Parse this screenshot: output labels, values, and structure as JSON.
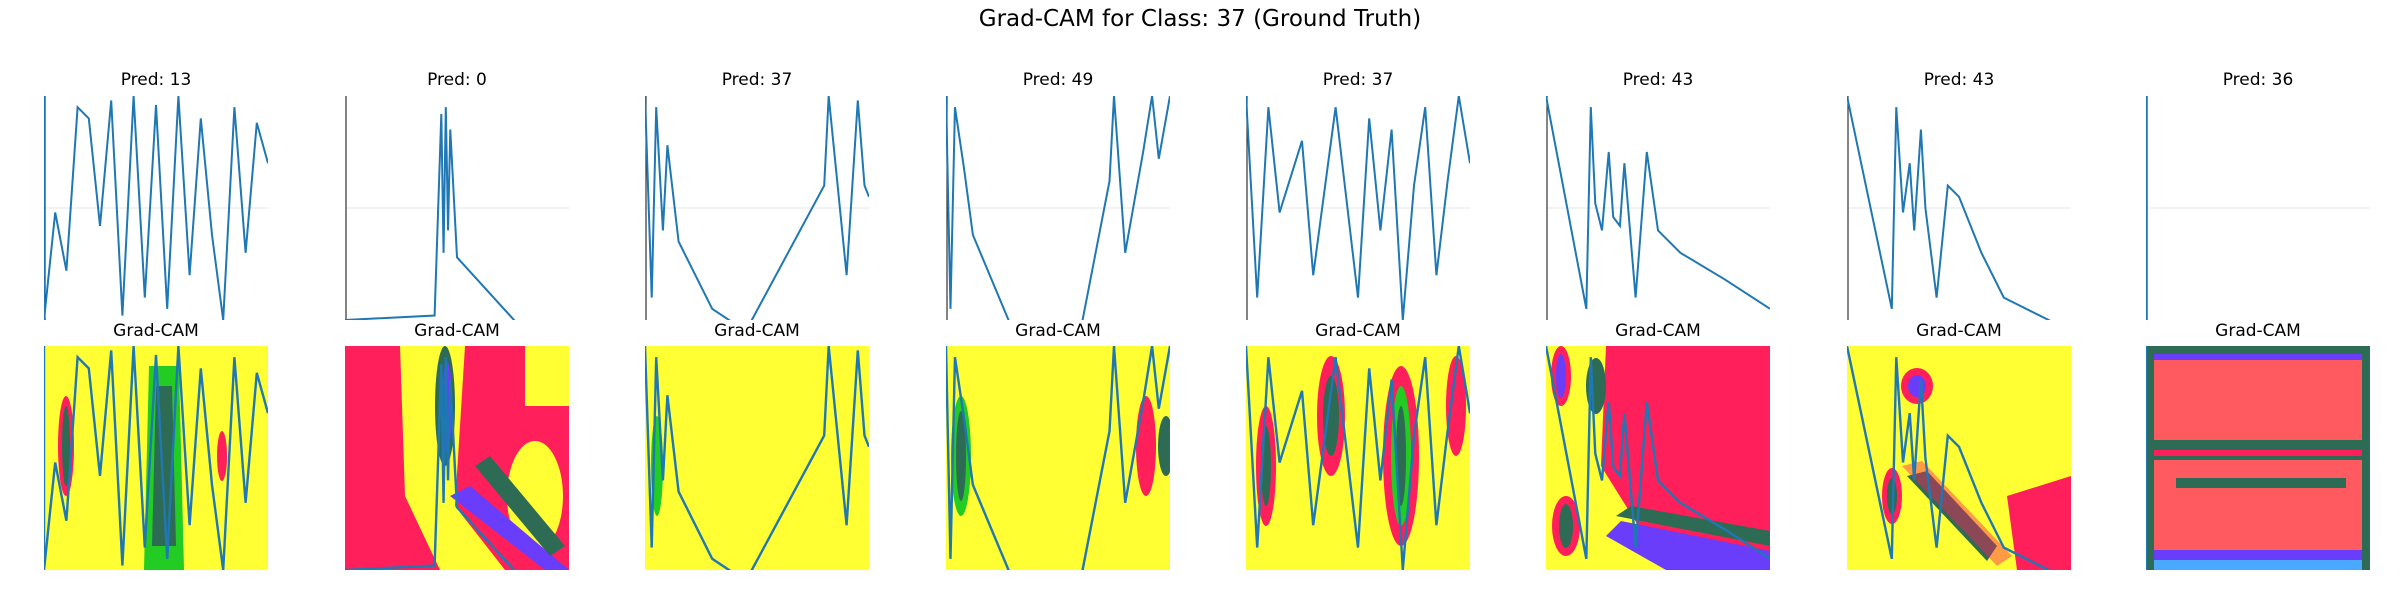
{
  "figure": {
    "title": "Grad-CAM for Class: 37 (Ground Truth)"
  },
  "chart_data": {
    "type": "line",
    "title": "Grad-CAM for Class: 37 (Ground Truth)",
    "grid": true,
    "colors": {
      "line": "#1f77b4",
      "heat_high": "#ffff33",
      "heat_mid": "#ff1f5b",
      "heat_low": "#2e6b55",
      "heat_cool": "#6a3dfa",
      "heat_green": "#22cc22",
      "heat_salmon": "#ff5a5f"
    },
    "panels": [
      {
        "top_label": "Pred: 13",
        "bottom_label": "Grad-CAM",
        "series": [
          [
            0,
            100
          ],
          [
            0,
            0
          ],
          [
            5,
            48
          ],
          [
            10,
            22
          ],
          [
            15,
            95
          ],
          [
            20,
            90
          ],
          [
            25,
            42
          ],
          [
            30,
            98
          ],
          [
            35,
            2
          ],
          [
            40,
            100
          ],
          [
            45,
            10
          ],
          [
            50,
            96
          ],
          [
            55,
            5
          ],
          [
            60,
            100
          ],
          [
            65,
            20
          ],
          [
            70,
            90
          ],
          [
            75,
            38
          ],
          [
            80,
            0
          ],
          [
            85,
            95
          ],
          [
            90,
            30
          ],
          [
            95,
            88
          ],
          [
            100,
            70
          ]
        ]
      },
      {
        "top_label": "Pred: 0",
        "bottom_label": "Grad-CAM",
        "series": [
          [
            0,
            0
          ],
          [
            40,
            2
          ],
          [
            43,
            92
          ],
          [
            44,
            30
          ],
          [
            45,
            95
          ],
          [
            46,
            40
          ],
          [
            47,
            85
          ],
          [
            50,
            28
          ],
          [
            80,
            -5
          ],
          [
            100,
            -10
          ]
        ]
      },
      {
        "top_label": "Pred: 37",
        "bottom_label": "Grad-CAM",
        "series": [
          [
            0,
            100
          ],
          [
            3,
            10
          ],
          [
            5,
            95
          ],
          [
            8,
            40
          ],
          [
            10,
            78
          ],
          [
            15,
            35
          ],
          [
            30,
            5
          ],
          [
            45,
            -5
          ],
          [
            80,
            60
          ],
          [
            82,
            100
          ],
          [
            90,
            20
          ],
          [
            95,
            98
          ],
          [
            98,
            60
          ],
          [
            100,
            55
          ]
        ]
      },
      {
        "top_label": "Pred: 49",
        "bottom_label": "Grad-CAM",
        "series": [
          [
            0,
            100
          ],
          [
            2,
            5
          ],
          [
            4,
            95
          ],
          [
            8,
            68
          ],
          [
            12,
            38
          ],
          [
            30,
            -5
          ],
          [
            60,
            -5
          ],
          [
            73,
            62
          ],
          [
            75,
            100
          ],
          [
            80,
            30
          ],
          [
            88,
            75
          ],
          [
            92,
            100
          ],
          [
            95,
            72
          ],
          [
            100,
            100
          ]
        ]
      },
      {
        "top_label": "Pred: 37",
        "bottom_label": "Grad-CAM",
        "series": [
          [
            0,
            100
          ],
          [
            5,
            10
          ],
          [
            10,
            95
          ],
          [
            15,
            48
          ],
          [
            25,
            80
          ],
          [
            30,
            20
          ],
          [
            40,
            95
          ],
          [
            50,
            10
          ],
          [
            55,
            90
          ],
          [
            60,
            40
          ],
          [
            65,
            85
          ],
          [
            70,
            0
          ],
          [
            75,
            60
          ],
          [
            80,
            95
          ],
          [
            85,
            20
          ],
          [
            90,
            62
          ],
          [
            95,
            100
          ],
          [
            100,
            70
          ]
        ]
      },
      {
        "top_label": "Pred: 43",
        "bottom_label": "Grad-CAM",
        "series": [
          [
            0,
            100
          ],
          [
            18,
            5
          ],
          [
            20,
            95
          ],
          [
            22,
            52
          ],
          [
            25,
            40
          ],
          [
            28,
            75
          ],
          [
            30,
            46
          ],
          [
            33,
            42
          ],
          [
            35,
            70
          ],
          [
            40,
            10
          ],
          [
            45,
            75
          ],
          [
            50,
            40
          ],
          [
            60,
            30
          ],
          [
            80,
            18
          ],
          [
            100,
            5
          ]
        ]
      },
      {
        "top_label": "Pred: 43",
        "bottom_label": "Grad-CAM",
        "series": [
          [
            0,
            100
          ],
          [
            20,
            5
          ],
          [
            22,
            95
          ],
          [
            25,
            48
          ],
          [
            28,
            70
          ],
          [
            30,
            40
          ],
          [
            33,
            85
          ],
          [
            35,
            50
          ],
          [
            40,
            10
          ],
          [
            45,
            60
          ],
          [
            50,
            55
          ],
          [
            60,
            30
          ],
          [
            70,
            10
          ],
          [
            100,
            -5
          ]
        ]
      },
      {
        "top_label": "Pred: 36",
        "bottom_label": "Grad-CAM",
        "series": [
          [
            0,
            100
          ],
          [
            0,
            0
          ]
        ]
      }
    ]
  }
}
